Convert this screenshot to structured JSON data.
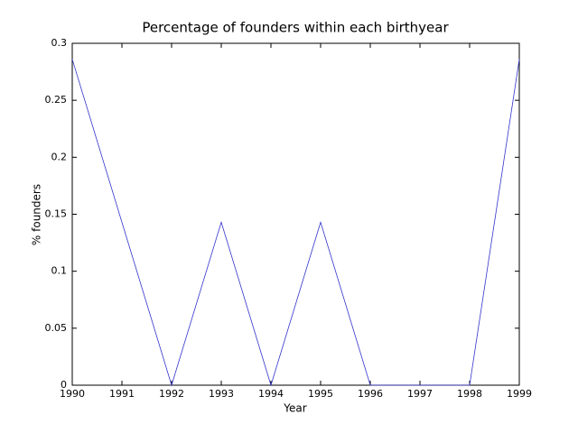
{
  "chart_data": {
    "type": "line",
    "title": "Percentage of founders within each birthyear",
    "x_label": "Year",
    "y_label": "% founders",
    "x": [
      1990,
      1992,
      1993,
      1994,
      1995,
      1996,
      1998,
      1999
    ],
    "series": [
      {
        "color": "#3333cc",
        "values": [
          0.286,
          0,
          0.143,
          0,
          0.143,
          0,
          0,
          0.286
        ]
      }
    ],
    "xlim": [
      1990,
      1999
    ],
    "xticks": [
      1990,
      1991,
      1992,
      1993,
      1994,
      1995,
      1996,
      1997,
      1998,
      1999
    ],
    "ylim": [
      0,
      0.3
    ],
    "yticks": [
      0,
      0.05,
      0.1,
      0.15,
      0.2,
      0.25,
      0.3
    ],
    "grid": false
  }
}
